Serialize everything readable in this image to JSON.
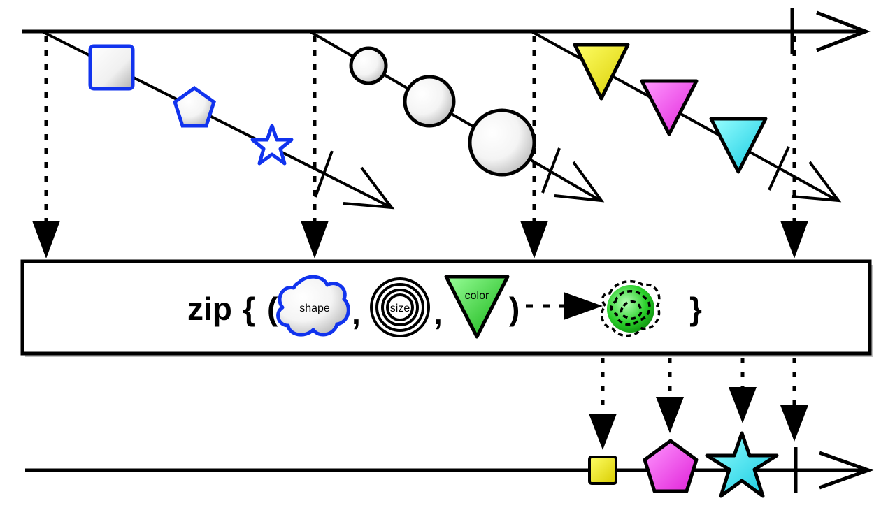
{
  "operator": {
    "name": "zip",
    "brace_open": "{",
    "paren_open": "(",
    "comma": ",",
    "paren_close": ")",
    "brace_close": "}",
    "params": [
      {
        "label": "shape",
        "icon": "cloud-icon",
        "stroke": "#1133ee"
      },
      {
        "label": "size",
        "icon": "concentric-circles-icon",
        "stroke": "#000000"
      },
      {
        "label": "color",
        "icon": "triangle-down-icon",
        "fill": "#22cc22"
      }
    ],
    "result_icon": "green-blob-icon",
    "result_color": "#22cc22"
  },
  "input_streams": [
    {
      "items": [
        {
          "shape": "square",
          "color": "#ffffff",
          "stroke": "#1133ee"
        },
        {
          "shape": "pentagon",
          "color": "#ffffff",
          "stroke": "#1133ee"
        },
        {
          "shape": "star",
          "color": "#ffffff",
          "stroke": "#1133ee"
        }
      ],
      "completed": true
    },
    {
      "items": [
        {
          "shape": "circle",
          "size": "small",
          "color": "#ffffff"
        },
        {
          "shape": "circle",
          "size": "medium",
          "color": "#ffffff"
        },
        {
          "shape": "circle",
          "size": "large",
          "color": "#ffffff"
        }
      ],
      "completed": true
    },
    {
      "items": [
        {
          "shape": "triangle-down",
          "color": "#ffee22"
        },
        {
          "shape": "triangle-down",
          "color": "#ff44ee"
        },
        {
          "shape": "triangle-down",
          "color": "#22eeff"
        }
      ],
      "completed": true
    }
  ],
  "output_stream": {
    "items": [
      {
        "shape": "square",
        "size": "small",
        "color": "#ffee22"
      },
      {
        "shape": "pentagon",
        "size": "medium",
        "color": "#ff44ee"
      },
      {
        "shape": "star",
        "size": "large",
        "color": "#22eeff"
      }
    ],
    "completed": true
  }
}
